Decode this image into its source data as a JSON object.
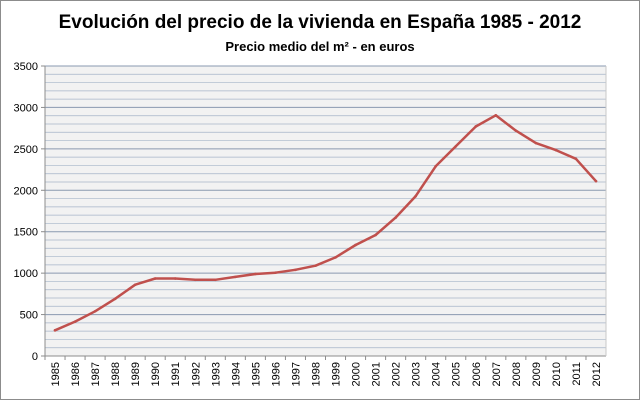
{
  "chart_data": {
    "type": "line",
    "title": "Evolución del precio de la vivienda en España 1985 - 2012",
    "subtitle": "Precio medio del m² - en euros",
    "xlabel": "",
    "ylabel": "",
    "ylim": [
      0,
      3500
    ],
    "yticks": [
      0,
      500,
      1000,
      1500,
      2000,
      2500,
      3000,
      3500
    ],
    "grid": true,
    "legend": "none",
    "categories": [
      "1985",
      "1986",
      "1987",
      "1988",
      "1989",
      "1990",
      "1991",
      "1992",
      "1993",
      "1994",
      "1995",
      "1996",
      "1997",
      "1998",
      "1999",
      "2000",
      "2001",
      "2002",
      "2003",
      "2004",
      "2005",
      "2006",
      "2007",
      "2008",
      "2009",
      "2010",
      "2011",
      "2012"
    ],
    "series": [
      {
        "color": "#c0504d",
        "values": [
          310,
          415,
          540,
          690,
          860,
          935,
          935,
          920,
          920,
          955,
          990,
          1005,
          1040,
          1090,
          1190,
          1340,
          1460,
          1670,
          1930,
          2290,
          2530,
          2770,
          2905,
          2720,
          2570,
          2485,
          2380,
          2110
        ]
      }
    ]
  },
  "colors": {
    "line": "#c0504d",
    "plot_bg": "#f2f2f2",
    "grid": "#a6b4c8",
    "axis": "#8c8c8c"
  }
}
